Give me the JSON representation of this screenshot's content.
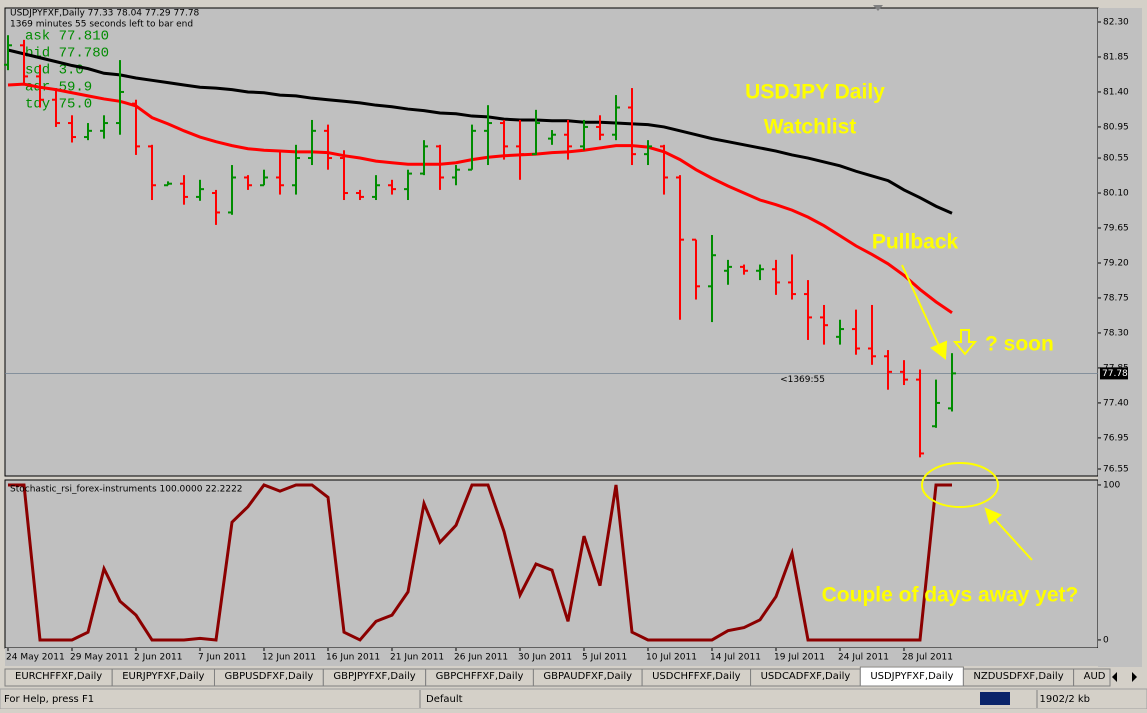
{
  "chart_data": {
    "type": "ohlc",
    "header": "USDJPYFXF,Daily  77.33 78.04 77.29 77.78",
    "subheader": "1369 minutes 55 seconds left to bar end",
    "info_lines": [
      "ask  77.810",
      "bid  77.780",
      "sod  3.0",
      "adr  59.9",
      "tdy  75.0"
    ],
    "categories": [
      "24 May 2011",
      null,
      null,
      null,
      "29 May 2011",
      null,
      null,
      null,
      "2 Jun 2011",
      null,
      null,
      null,
      "7 Jun 2011",
      null,
      null,
      null,
      "12 Jun 2011",
      null,
      null,
      null,
      "16 Jun 2011",
      null,
      null,
      null,
      "21 Jun 2011",
      null,
      null,
      null,
      "26 Jun 2011",
      null,
      null,
      null,
      "30 Jun 2011",
      null,
      null,
      null,
      "5 Jul 2011",
      null,
      null,
      null,
      "10 Jul 2011",
      null,
      null,
      null,
      "14 Jul 2011",
      null,
      null,
      null,
      "19 Jul 2011",
      null,
      null,
      null,
      "24 Jul 2011",
      null,
      null,
      null,
      "28 Jul 2011",
      null,
      null,
      null
    ],
    "open": [
      81.75,
      82.0,
      81.6,
      81.3,
      81.0,
      80.82,
      80.9,
      81.0,
      81.25,
      80.7,
      80.2,
      80.22,
      80.05,
      80.1,
      79.85,
      80.3,
      80.2,
      80.3,
      80.2,
      80.55,
      80.9,
      80.55,
      80.1,
      80.05,
      80.2,
      80.15,
      80.35,
      80.7,
      80.3,
      80.4,
      80.9,
      81.0,
      80.7,
      80.6,
      80.8,
      80.85,
      80.7,
      80.95,
      80.85,
      81.2,
      80.6,
      80.7,
      80.3,
      79.5,
      78.9,
      79.1,
      79.15,
      79.1,
      79.12,
      78.95,
      78.8,
      78.5,
      78.25,
      78.35,
      78.1,
      78.0,
      77.8,
      77.7,
      77.1,
      77.33
    ],
    "high": [
      82.13,
      82.07,
      81.75,
      81.45,
      81.1,
      81.0,
      81.1,
      81.81,
      81.3,
      80.72,
      80.25,
      80.33,
      80.27,
      80.14,
      80.46,
      80.33,
      80.4,
      80.65,
      80.72,
      81.04,
      80.98,
      80.65,
      80.14,
      80.33,
      80.27,
      80.4,
      80.78,
      80.72,
      80.46,
      80.98,
      81.23,
      81.04,
      81.04,
      81.17,
      80.91,
      81.04,
      81.04,
      81.1,
      81.36,
      81.45,
      80.78,
      80.72,
      80.33,
      79.5,
      79.56,
      79.24,
      79.18,
      79.18,
      79.24,
      79.31,
      78.98,
      78.66,
      78.47,
      78.6,
      78.66,
      78.08,
      77.95,
      77.83,
      77.7,
      78.04
    ],
    "low": [
      81.68,
      81.49,
      81.2,
      80.95,
      80.75,
      80.78,
      80.8,
      80.85,
      80.59,
      80.01,
      80.2,
      79.95,
      80.0,
      79.69,
      79.82,
      80.14,
      80.2,
      80.08,
      80.08,
      80.46,
      80.4,
      80.01,
      80.01,
      80.01,
      80.08,
      80.01,
      80.33,
      80.14,
      80.2,
      80.4,
      80.46,
      80.53,
      80.27,
      80.59,
      80.72,
      80.53,
      80.65,
      80.78,
      80.78,
      80.46,
      80.46,
      80.08,
      78.47,
      78.73,
      78.44,
      78.92,
      79.05,
      78.98,
      78.79,
      78.73,
      78.21,
      78.15,
      78.15,
      78.02,
      77.89,
      77.57,
      77.63,
      76.7,
      77.08,
      77.29
    ],
    "close": [
      82.0,
      81.6,
      81.3,
      81.0,
      80.82,
      80.9,
      81.0,
      81.4,
      80.7,
      80.2,
      80.22,
      80.05,
      80.15,
      79.85,
      80.3,
      80.2,
      80.3,
      80.2,
      80.55,
      80.9,
      80.55,
      80.1,
      80.05,
      80.2,
      80.15,
      80.35,
      80.7,
      80.3,
      80.4,
      80.9,
      81.0,
      80.7,
      80.6,
      81.0,
      80.85,
      80.7,
      80.95,
      80.85,
      81.2,
      80.6,
      80.7,
      80.3,
      79.5,
      78.9,
      79.3,
      79.15,
      79.1,
      79.12,
      78.95,
      78.8,
      78.5,
      78.4,
      78.35,
      78.1,
      78.0,
      77.8,
      77.7,
      76.75,
      77.4,
      77.78
    ],
    "up_color": "#008c00",
    "down_color": "#ff0000",
    "moving_averages": [
      {
        "color": "#000000",
        "values": [
          81.94,
          81.89,
          81.84,
          81.79,
          81.74,
          81.7,
          81.64,
          81.62,
          81.58,
          81.55,
          81.52,
          81.49,
          81.46,
          81.45,
          81.43,
          81.4,
          81.39,
          81.36,
          81.35,
          81.32,
          81.3,
          81.28,
          81.26,
          81.23,
          81.21,
          81.18,
          81.16,
          81.13,
          81.12,
          81.09,
          81.08,
          81.05,
          81.04,
          81.04,
          81.03,
          81.03,
          81.01,
          81.01,
          81.0,
          80.99,
          80.98,
          80.95,
          80.9,
          80.85,
          80.8,
          80.76,
          80.72,
          80.68,
          80.64,
          80.59,
          80.55,
          80.5,
          80.45,
          80.38,
          80.32,
          80.26,
          80.14,
          80.04,
          79.93,
          79.84
        ]
      },
      {
        "color": "#ff0000",
        "values": [
          81.49,
          81.5,
          81.46,
          81.43,
          81.39,
          81.35,
          81.31,
          81.28,
          81.22,
          81.07,
          80.99,
          80.9,
          80.82,
          80.76,
          80.71,
          80.67,
          80.65,
          80.64,
          80.63,
          80.63,
          80.62,
          80.58,
          80.55,
          80.51,
          80.49,
          80.47,
          80.47,
          80.47,
          80.49,
          80.53,
          80.56,
          80.58,
          80.59,
          80.6,
          80.62,
          80.63,
          80.65,
          80.68,
          80.71,
          80.71,
          80.69,
          80.63,
          80.53,
          80.4,
          80.29,
          80.19,
          80.1,
          80.01,
          79.95,
          79.88,
          79.79,
          79.68,
          79.55,
          79.42,
          79.31,
          79.19,
          79.04,
          78.86,
          78.7,
          78.56
        ]
      }
    ],
    "ylim": [
      76.46,
      82.48
    ],
    "yticks": [
      {
        "value": 82.3,
        "label": "82.30"
      },
      81.85,
      {
        "value": 81.4,
        "label": "81.40"
      },
      80.95,
      80.55,
      {
        "value": 80.1,
        "label": "80.10"
      },
      79.65,
      {
        "value": 79.2,
        "label": "79.20"
      },
      78.75,
      {
        "value": 78.3,
        "label": "78.30"
      },
      77.85,
      {
        "value": 77.4,
        "label": "77.40"
      },
      76.95,
      76.55
    ],
    "last_price": {
      "value": 77.78,
      "label": "77.78"
    },
    "countdown": "<1369:55",
    "annotations": [
      "USDJPY Daily",
      "Watchlist",
      "Pullback",
      "? soon",
      "Couple of days away yet?"
    ],
    "indicator": {
      "label": "Stochastic_rsi_forex-instruments 100.0000 22.2222",
      "color": "#8b0000",
      "values": [
        100,
        100,
        0,
        0,
        0,
        5,
        46,
        25,
        16,
        0,
        0,
        0,
        1,
        0,
        76,
        86,
        100,
        96,
        100,
        100,
        92,
        5,
        0,
        12,
        16,
        31,
        88,
        63,
        74,
        100,
        100,
        70,
        29,
        49,
        45,
        12,
        67,
        35,
        100,
        5,
        0,
        0,
        0,
        0,
        0,
        6,
        8,
        13,
        28,
        56,
        0,
        0,
        0,
        0,
        0,
        0,
        0,
        0,
        100,
        100
      ],
      "ylim": [
        -5.2,
        103.2
      ],
      "yticks": [
        0,
        100
      ]
    }
  },
  "tabs": {
    "items": [
      "EURCHFFXF,Daily",
      "EURJPYFXF,Daily",
      "GBPUSDFXF,Daily",
      "GBPJPYFXF,Daily",
      "GBPCHFFXF,Daily",
      "GBPAUDFXF,Daily",
      "USDCHFFXF,Daily",
      "USDCADFXF,Daily",
      "USDJPYFXF,Daily",
      "NZDUSDFXF,Daily",
      "AUD"
    ],
    "active": 8
  },
  "status_bar": {
    "help": "For Help, press F1",
    "profile": "Default",
    "traffic": "1902/2 kb"
  }
}
